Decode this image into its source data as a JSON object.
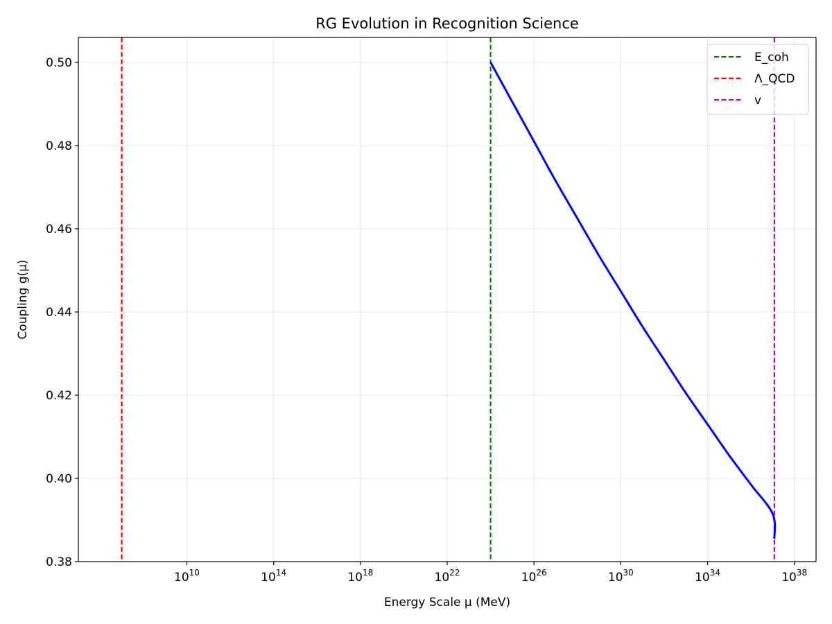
{
  "chart_data": {
    "type": "line",
    "title": "RG Evolution in Recognition Science",
    "xlabel": "Energy Scale μ (MeV)",
    "ylabel": "Coupling g(μ)",
    "x_scale": "log10",
    "xlim": [
      100000.0,
      1e+39
    ],
    "ylim": [
      0.38,
      0.506
    ],
    "x_ticks": [
      {
        "exp": 10,
        "base": "10",
        "sup": "10"
      },
      {
        "exp": 14,
        "base": "10",
        "sup": "14"
      },
      {
        "exp": 18,
        "base": "10",
        "sup": "18"
      },
      {
        "exp": 22,
        "base": "10",
        "sup": "22"
      },
      {
        "exp": 26,
        "base": "10",
        "sup": "26"
      },
      {
        "exp": 30,
        "base": "10",
        "sup": "30"
      },
      {
        "exp": 34,
        "base": "10",
        "sup": "34"
      },
      {
        "exp": 38,
        "base": "10",
        "sup": "38"
      }
    ],
    "y_ticks": [
      {
        "value": 0.38,
        "label": "0.38"
      },
      {
        "value": 0.4,
        "label": "0.40"
      },
      {
        "value": 0.42,
        "label": "0.42"
      },
      {
        "value": 0.44,
        "label": "0.44"
      },
      {
        "value": 0.46,
        "label": "0.46"
      },
      {
        "value": 0.48,
        "label": "0.48"
      },
      {
        "value": 0.5,
        "label": "0.50"
      }
    ],
    "grid": true,
    "legend_position": "top-right",
    "series": [
      {
        "color": "#0000ff",
        "x": [
          1e+24,
          1e+25,
          1e+26,
          1e+27,
          1e+28,
          1e+29,
          1e+30,
          1e+31,
          1e+32,
          1e+33,
          1e+34,
          1e+35,
          1e+36,
          1e+37,
          1.2e+37
        ],
        "y": [
          0.5,
          0.4905,
          0.481,
          0.4715,
          0.4625,
          0.4535,
          0.445,
          0.4365,
          0.4285,
          0.4205,
          0.413,
          0.4055,
          0.3985,
          0.3915,
          0.3855
        ]
      }
    ],
    "vlines": [
      {
        "name": "E_coh",
        "x": 1e+24,
        "color": "#008000"
      },
      {
        "name": "Λ_QCD",
        "x": 10000000.0,
        "color": "#ff0000"
      },
      {
        "name": "v",
        "x": 1.2e+37,
        "color": "#bf00bf"
      }
    ]
  }
}
